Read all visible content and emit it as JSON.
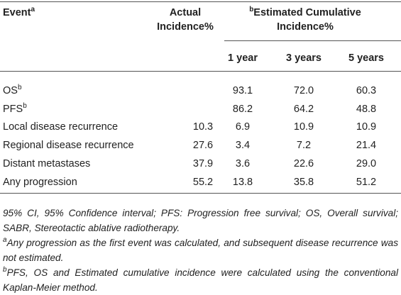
{
  "table": {
    "header": {
      "event": {
        "text": "Event",
        "sup": "a"
      },
      "actual": "Actual Incidence%",
      "estimated": {
        "sup": "b",
        "text": "Estimated Cumulative Incidence%"
      },
      "years": [
        "1 year",
        "3 years",
        "5 years"
      ]
    },
    "rows": [
      {
        "event": "OS",
        "sup": "b",
        "actual": null,
        "values": [
          "93.1",
          "72.0",
          "60.3"
        ]
      },
      {
        "event": "PFS",
        "sup": "b",
        "actual": null,
        "values": [
          "86.2",
          "64.2",
          "48.8"
        ]
      },
      {
        "event": "Local disease recurrence",
        "sup": null,
        "actual": "10.3",
        "values": [
          "6.9",
          "10.9",
          "10.9"
        ]
      },
      {
        "event": "Regional disease recurrence",
        "sup": null,
        "actual": "27.6",
        "values": [
          "3.4",
          "7.2",
          "21.4"
        ]
      },
      {
        "event": "Distant metastases",
        "sup": null,
        "actual": "37.9",
        "values": [
          "3.6",
          "22.6",
          "29.0"
        ]
      },
      {
        "event": "Any progression",
        "sup": null,
        "actual": "55.2",
        "values": [
          "13.8",
          "35.8",
          "51.2"
        ]
      }
    ]
  },
  "footnotes": [
    {
      "sup": null,
      "text": "95% CI, 95% Confidence interval; PFS: Progression free survival; OS, Overall survival; SABR, Stereotactic ablative radiotherapy."
    },
    {
      "sup": "a",
      "text": "Any progression as the first event was calculated, and subsequent disease recurrence was not estimated."
    },
    {
      "sup": "b",
      "text": "PFS, OS and Estimated cumulative incidence were calculated using the conventional Kaplan-Meier method."
    }
  ]
}
